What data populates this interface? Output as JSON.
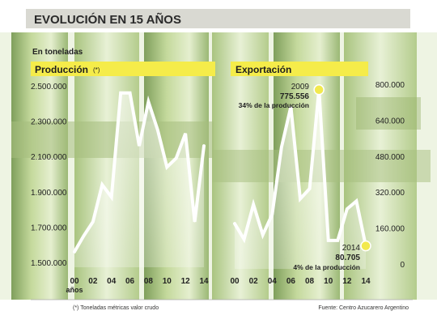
{
  "header": {
    "title": "EVOLUCIÓN EN 15 AÑOS",
    "unit_label": "En toneladas",
    "footnote": "(*) Toneladas métricas valor crudo",
    "source": "Fuente: Centro Azucarero Argentino"
  },
  "colors": {
    "title_band": "#d9d9d2",
    "label_band": "#f5ec4a",
    "line": "#ffffff",
    "highlight_dot": "#f2e94e",
    "text": "#222222",
    "background_greens": [
      "#8fae6a",
      "#b7cf8e",
      "#dbe8c2"
    ]
  },
  "chart_data": [
    {
      "type": "line",
      "title": "Producción",
      "title_mark": "(*)",
      "x": [
        "00",
        "01",
        "02",
        "03",
        "04",
        "05",
        "06",
        "07",
        "08",
        "09",
        "10",
        "11",
        "12",
        "13",
        "14"
      ],
      "x_tick_labels": [
        "00",
        "02",
        "04",
        "06",
        "08",
        "10",
        "12",
        "14"
      ],
      "x_axis_note": "años",
      "values": [
        1560000,
        1650000,
        1730000,
        1940000,
        1870000,
        2460000,
        2460000,
        2160000,
        2410000,
        2250000,
        2040000,
        2090000,
        2230000,
        1730000,
        2160000
      ],
      "ylim": [
        1500000,
        2500000
      ],
      "y_ticks": [
        "1.500.000",
        "1.700.000",
        "1.900.000",
        "2.100.000",
        "2.300.000",
        "2.500.000"
      ],
      "y_axis_side": "left",
      "grid": false,
      "legend": "none"
    },
    {
      "type": "line",
      "title": "Exportación",
      "x": [
        "00",
        "01",
        "02",
        "03",
        "04",
        "05",
        "06",
        "07",
        "08",
        "09",
        "10",
        "11",
        "12",
        "13",
        "14"
      ],
      "x_tick_labels": [
        "00",
        "02",
        "04",
        "06",
        "08",
        "10",
        "12",
        "14"
      ],
      "values": [
        180000,
        110000,
        265000,
        130000,
        220000,
        520000,
        700000,
        290000,
        335000,
        775556,
        105000,
        105000,
        245000,
        280000,
        80705
      ],
      "ylim": [
        0,
        800000
      ],
      "y_ticks": [
        "0",
        "160.000",
        "320.000",
        "480.000",
        "640.000",
        "800.000"
      ],
      "y_axis_side": "right",
      "grid": false,
      "legend": "none",
      "annotations": [
        {
          "x": "09",
          "year": "2009",
          "value": "775.556",
          "note": "34% de la producción"
        },
        {
          "x": "14",
          "year": "2014",
          "value": "80.705",
          "note": "4% de la producción"
        }
      ]
    }
  ]
}
